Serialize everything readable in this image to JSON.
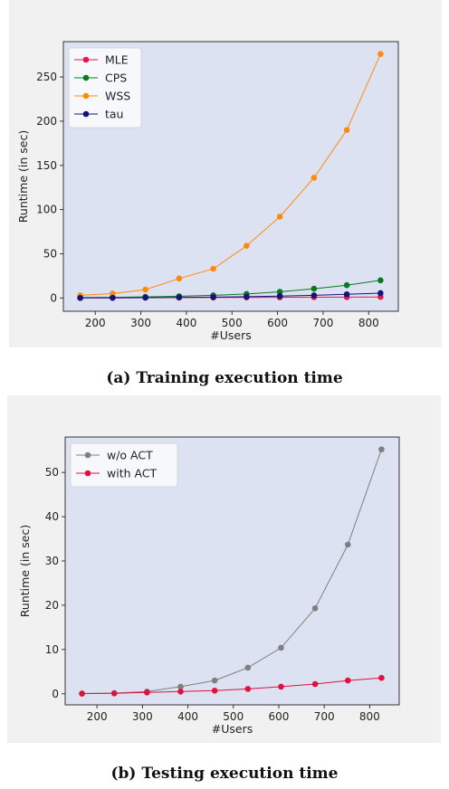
{
  "captions": {
    "a": "(a) Training execution time",
    "b": "(b) Testing execution time"
  },
  "chart_data": [
    {
      "type": "line",
      "title": "",
      "xlabel": "#Users",
      "ylabel": "Runtime (in sec)",
      "xlim": [
        130,
        865
      ],
      "ylim": [
        -15,
        290
      ],
      "xticks": [
        200,
        300,
        400,
        500,
        600,
        700,
        800
      ],
      "yticks": [
        0,
        50,
        100,
        150,
        200,
        250
      ],
      "legend_position": "top-left",
      "plot_background": "#dde2f2",
      "x": [
        167,
        238,
        310,
        384,
        459,
        532,
        605,
        680,
        752,
        826
      ],
      "series": [
        {
          "name": "MLE",
          "color": "#e8174d",
          "values": [
            0.2,
            0.3,
            0.4,
            0.5,
            0.6,
            0.7,
            0.8,
            0.9,
            1.0,
            1.2
          ]
        },
        {
          "name": "CPS",
          "color": "#0a7a1e",
          "values": [
            0.5,
            0.8,
            1.3,
            2.0,
            3.0,
            4.5,
            7.0,
            10.5,
            14.5,
            20.0
          ]
        },
        {
          "name": "WSS",
          "color": "#ff8a0d",
          "values": [
            3,
            5,
            9.5,
            22,
            33,
            59,
            92,
            136,
            190,
            276
          ]
        },
        {
          "name": "tau",
          "color": "#13137a",
          "values": [
            0.1,
            0.2,
            0.4,
            0.7,
            1.0,
            1.5,
            2.2,
            3.0,
            4.2,
            5.5
          ]
        }
      ]
    },
    {
      "type": "line",
      "title": "",
      "xlabel": "#Users",
      "ylabel": "Runtime (in sec)",
      "xlim": [
        130,
        865
      ],
      "ylim": [
        -2.5,
        58
      ],
      "xticks": [
        200,
        300,
        400,
        500,
        600,
        700,
        800
      ],
      "yticks": [
        0,
        10,
        20,
        30,
        40,
        50
      ],
      "legend_position": "top-left",
      "plot_background": "#dde2f2",
      "x": [
        167,
        238,
        310,
        384,
        459,
        532,
        605,
        680,
        752,
        826
      ],
      "series": [
        {
          "name": "w/o ACT",
          "color": "#7f7f7f",
          "values": [
            0.05,
            0.15,
            0.5,
            1.6,
            3.0,
            5.9,
            10.4,
            19.3,
            33.7,
            55.2
          ]
        },
        {
          "name": "with ACT",
          "color": "#e0103f",
          "values": [
            0.05,
            0.1,
            0.3,
            0.5,
            0.7,
            1.1,
            1.6,
            2.2,
            3.0,
            3.6
          ]
        }
      ]
    }
  ]
}
